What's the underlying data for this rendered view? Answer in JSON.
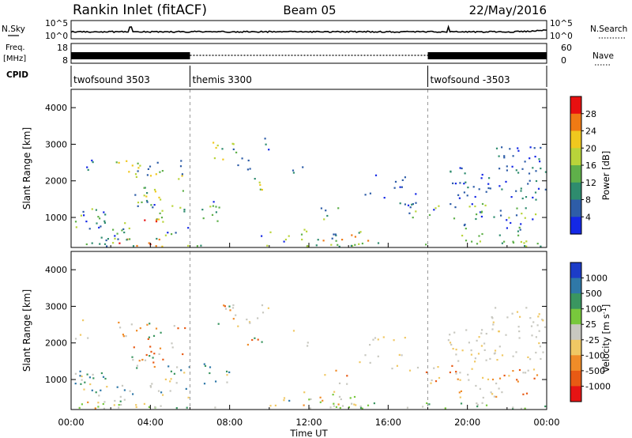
{
  "header": {
    "station": "Rankin Inlet (fitACF)",
    "beam": "Beam 05",
    "date": "22/May/2016"
  },
  "chart_data": [
    {
      "type": "line",
      "panel": "noise",
      "left_label": "N.Sky",
      "right_label": "N.Search",
      "left_ticks": [
        "10^5",
        "10^0"
      ],
      "right_ticks": [
        "10^5",
        "10^0"
      ]
    },
    {
      "type": "line",
      "panel": "frequency",
      "left_label_top": "Freq.",
      "left_label_bottom": "[MHz]",
      "right_label": "Nave",
      "left_ticks": [
        "18",
        "8"
      ],
      "right_ticks": [
        "60",
        "0"
      ]
    },
    {
      "type": "table",
      "panel": "cpid",
      "label": "CPID",
      "segments": [
        {
          "name": "twofsound 3503",
          "start_hour": 0
        },
        {
          "name": "themis 3300",
          "start_hour": 6
        },
        {
          "name": "twofsound -3503",
          "start_hour": 18
        }
      ]
    },
    {
      "type": "heatmap",
      "panel": "power",
      "ylabel": "Slant Range [km]",
      "ylim": [
        180,
        4500
      ],
      "yticks": [
        "1000",
        "2000",
        "3000",
        "4000"
      ],
      "xlim": [
        0,
        24
      ],
      "colorbar_label": "Power [dB]",
      "colorbar_ticks": [
        "4",
        "8",
        "12",
        "16",
        "20",
        "24",
        "28"
      ],
      "colorbar_colors": [
        "#1428e6",
        "#2e5da8",
        "#2e8c6e",
        "#5fb04a",
        "#b9d43a",
        "#f0c81e",
        "#f07a14",
        "#e81010"
      ]
    },
    {
      "type": "heatmap",
      "panel": "velocity",
      "ylabel": "Slant Range [km]",
      "ylim": [
        180,
        4500
      ],
      "yticks": [
        "1000",
        "2000",
        "3000",
        "4000"
      ],
      "xlim": [
        0,
        24
      ],
      "colorbar_label": "Velocity [m s^-1]",
      "colorbar_ticks": [
        "1000",
        "500",
        "100",
        "25",
        "-25",
        "-100",
        "-500",
        "-1000"
      ],
      "colorbar_colors": [
        "#1c3cc8",
        "#2f78a8",
        "#3a9660",
        "#78c83c",
        "#c8c8c0",
        "#f0c864",
        "#f08c28",
        "#e85a14",
        "#e61414"
      ]
    }
  ],
  "xaxis": {
    "label": "Time UT",
    "ticks": [
      "00:00",
      "04:00",
      "08:00",
      "12:00",
      "16:00",
      "20:00",
      "00:00"
    ]
  }
}
